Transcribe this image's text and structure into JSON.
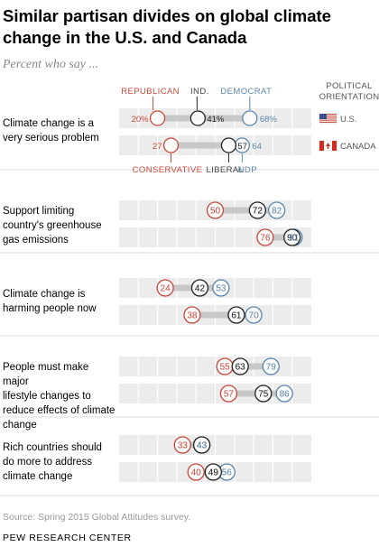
{
  "title": "Similar partisan divides on global climate change in the U.S. and Canada",
  "subtitle": "Percent who say ...",
  "source": "Source: Spring 2015 Global Attitudes survey.",
  "brand": "PEW RESEARCH CENTER",
  "chart_data": {
    "type": "dot",
    "xlim": [
      0,
      100
    ],
    "grid": true,
    "legend": {
      "us": [
        "REPUBLICAN",
        "IND.",
        "DEMOCRAT"
      ],
      "canada": [
        "CONSERVATIVE",
        "LIBERAL",
        "NDP"
      ],
      "header": [
        "POLITICAL",
        "ORIENTATION"
      ],
      "country_us": "U.S.",
      "country_canada": "CANADA"
    },
    "colors": {
      "right": "#c9483b",
      "center": "#222222",
      "left": "#5b86aa",
      "bar": "#c8c8c8",
      "band": "#ececec",
      "grid": "#ffffff"
    },
    "questions": [
      {
        "label_lines": [
          "Climate change is a",
          "very serious problem"
        ],
        "us": {
          "values": [
            20,
            41,
            68
          ],
          "labels": [
            "20%",
            "41%",
            "68%"
          ]
        },
        "canada": {
          "values": [
            27,
            57,
            64
          ],
          "labels": [
            "27",
            "57",
            "64"
          ]
        }
      },
      {
        "label_lines": [
          "Support limiting",
          "country's greenhouse",
          "gas emissions"
        ],
        "us": {
          "values": [
            50,
            72,
            82
          ],
          "labels": [
            "50",
            "72",
            "82"
          ]
        },
        "canada": {
          "values": [
            76,
            90,
            91
          ],
          "labels": [
            "76",
            "90",
            "91"
          ]
        }
      },
      {
        "label_lines": [
          "Climate change is",
          "harming people now"
        ],
        "us": {
          "values": [
            24,
            42,
            53
          ],
          "labels": [
            "24",
            "42",
            "53"
          ]
        },
        "canada": {
          "values": [
            38,
            61,
            70
          ],
          "labels": [
            "38",
            "61",
            "70"
          ]
        }
      },
      {
        "label_lines": [
          "People must make major",
          "lifestyle changes to",
          "reduce effects of climate",
          "change"
        ],
        "us": {
          "values": [
            55,
            63,
            79
          ],
          "labels": [
            "55",
            "63",
            "79"
          ]
        },
        "canada": {
          "values": [
            57,
            75,
            86
          ],
          "labels": [
            "57",
            "75",
            "86"
          ]
        }
      },
      {
        "label_lines": [
          "Rich countries should",
          "do more to address",
          "climate change"
        ],
        "us": {
          "values": [
            33,
            43,
            43
          ],
          "labels": [
            "33",
            "43",
            "43"
          ]
        },
        "canada": {
          "values": [
            40,
            49,
            56
          ],
          "labels": [
            "40",
            "49",
            "56"
          ]
        }
      }
    ]
  }
}
